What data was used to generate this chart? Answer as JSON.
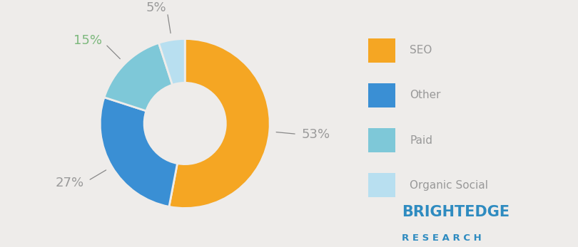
{
  "slices": [
    53,
    27,
    15,
    5
  ],
  "labels": [
    "SEO",
    "Other",
    "Paid",
    "Organic Social"
  ],
  "colors": [
    "#F5A623",
    "#3A8FD4",
    "#7EC8D8",
    "#B8DFF0"
  ],
  "pct_labels": [
    "53%",
    "27%",
    "15%",
    "5%"
  ],
  "pct_colors": [
    "#9A9A9A",
    "#9A9A9A",
    "#7CB87C",
    "#9A9A9A"
  ],
  "background_color": "#EEECEA",
  "legend_text_color": "#999999",
  "brightedge_color": "#2E8BC0",
  "wedge_edge_color": "#EEECEA",
  "line_color": "#888888"
}
